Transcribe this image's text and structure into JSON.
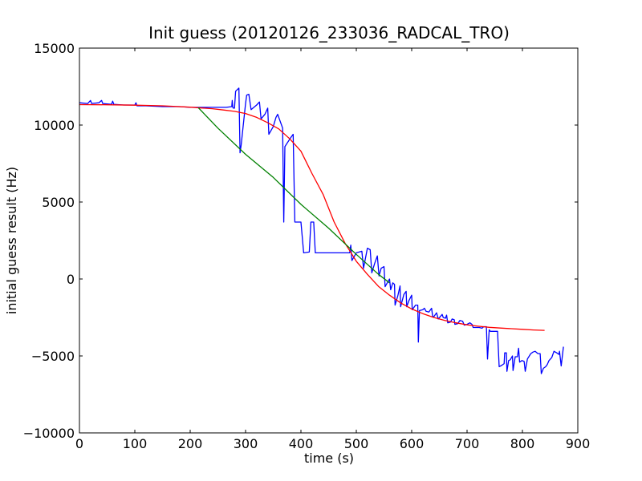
{
  "chart_data": {
    "type": "line",
    "title": "Init guess (20120126_233036_RADCAL_TRO)",
    "xlabel": "time (s)",
    "ylabel": "initial guess result (Hz)",
    "xlim": [
      0,
      900
    ],
    "ylim": [
      -10000,
      15000
    ],
    "xticks": [
      0,
      100,
      200,
      300,
      400,
      500,
      600,
      700,
      800,
      900
    ],
    "yticks": [
      -10000,
      -5000,
      0,
      5000,
      10000,
      15000
    ],
    "grid": false,
    "legend": "none",
    "series": [
      {
        "color": "#0000ff",
        "points": [
          [
            0,
            11450
          ],
          [
            15,
            11400
          ],
          [
            20,
            11600
          ],
          [
            22,
            11400
          ],
          [
            35,
            11450
          ],
          [
            40,
            11600
          ],
          [
            42,
            11400
          ],
          [
            58,
            11350
          ],
          [
            60,
            11550
          ],
          [
            62,
            11350
          ],
          [
            80,
            11300
          ],
          [
            100,
            11300
          ],
          [
            102,
            11450
          ],
          [
            104,
            11250
          ],
          [
            120,
            11250
          ],
          [
            150,
            11200
          ],
          [
            180,
            11200
          ],
          [
            200,
            11150
          ],
          [
            220,
            11150
          ],
          [
            250,
            11150
          ],
          [
            265,
            11150
          ],
          [
            275,
            11200
          ],
          [
            276,
            11600
          ],
          [
            277,
            11150
          ],
          [
            278,
            11100
          ],
          [
            280,
            11100
          ],
          [
            282,
            12200
          ],
          [
            288,
            12400
          ],
          [
            290,
            8200
          ],
          [
            292,
            8700
          ],
          [
            300,
            11400
          ],
          [
            302,
            11950
          ],
          [
            306,
            12000
          ],
          [
            310,
            11000
          ],
          [
            320,
            11300
          ],
          [
            325,
            11500
          ],
          [
            328,
            10400
          ],
          [
            335,
            10700
          ],
          [
            340,
            11100
          ],
          [
            342,
            9400
          ],
          [
            350,
            9900
          ],
          [
            355,
            10500
          ],
          [
            358,
            10700
          ],
          [
            367,
            9800
          ],
          [
            369,
            3700
          ],
          [
            371,
            8600
          ],
          [
            380,
            9100
          ],
          [
            386,
            9400
          ],
          [
            389,
            3700
          ],
          [
            392,
            3700
          ],
          [
            400,
            3700
          ],
          [
            405,
            1700
          ],
          [
            415,
            1750
          ],
          [
            418,
            3700
          ],
          [
            423,
            3700
          ],
          [
            426,
            1700
          ],
          [
            440,
            1700
          ],
          [
            460,
            1700
          ],
          [
            475,
            1700
          ],
          [
            488,
            1700
          ],
          [
            490,
            2200
          ],
          [
            492,
            1200
          ],
          [
            500,
            1700
          ],
          [
            510,
            1800
          ],
          [
            513,
            700
          ],
          [
            520,
            2000
          ],
          [
            525,
            1900
          ],
          [
            528,
            400
          ],
          [
            533,
            1000
          ],
          [
            538,
            1500
          ],
          [
            541,
            200
          ],
          [
            545,
            700
          ],
          [
            550,
            800
          ],
          [
            552,
            -500
          ],
          [
            555,
            -300
          ],
          [
            560,
            0
          ],
          [
            562,
            -700
          ],
          [
            566,
            -250
          ],
          [
            569,
            -350
          ],
          [
            570,
            -1700
          ],
          [
            575,
            -1100
          ],
          [
            579,
            -450
          ],
          [
            580,
            -1800
          ],
          [
            586,
            -1000
          ],
          [
            590,
            -800
          ],
          [
            591,
            -1800
          ],
          [
            595,
            -1400
          ],
          [
            600,
            -1050
          ],
          [
            601,
            -2000
          ],
          [
            607,
            -1700
          ],
          [
            611,
            -1700
          ],
          [
            612,
            -4100
          ],
          [
            614,
            -2050
          ],
          [
            620,
            -2000
          ],
          [
            623,
            -1900
          ],
          [
            626,
            -2100
          ],
          [
            631,
            -2150
          ],
          [
            636,
            -1900
          ],
          [
            638,
            -2450
          ],
          [
            640,
            -2450
          ],
          [
            645,
            -2200
          ],
          [
            648,
            -2600
          ],
          [
            655,
            -2300
          ],
          [
            657,
            -2500
          ],
          [
            661,
            -2550
          ],
          [
            663,
            -2350
          ],
          [
            665,
            -2850
          ],
          [
            670,
            -2800
          ],
          [
            673,
            -2600
          ],
          [
            677,
            -2650
          ],
          [
            678,
            -2950
          ],
          [
            683,
            -2900
          ],
          [
            687,
            -2700
          ],
          [
            692,
            -2750
          ],
          [
            695,
            -3000
          ],
          [
            700,
            -2950
          ],
          [
            705,
            -2850
          ],
          [
            709,
            -2950
          ],
          [
            711,
            -3150
          ],
          [
            722,
            -3150
          ],
          [
            727,
            -3200
          ],
          [
            730,
            -3100
          ],
          [
            735,
            -3100
          ],
          [
            737,
            -5200
          ],
          [
            740,
            -3300
          ],
          [
            742,
            -3400
          ],
          [
            755,
            -3400
          ],
          [
            758,
            -5700
          ],
          [
            763,
            -5600
          ],
          [
            767,
            -5500
          ],
          [
            768,
            -4800
          ],
          [
            771,
            -4800
          ],
          [
            772,
            -6000
          ],
          [
            775,
            -5300
          ],
          [
            778,
            -5250
          ],
          [
            782,
            -5000
          ],
          [
            783,
            -5950
          ],
          [
            787,
            -5050
          ],
          [
            791,
            -5050
          ],
          [
            793,
            -4500
          ],
          [
            795,
            -5400
          ],
          [
            799,
            -5300
          ],
          [
            803,
            -5350
          ],
          [
            805,
            -6000
          ],
          [
            809,
            -5200
          ],
          [
            815,
            -4850
          ],
          [
            819,
            -4750
          ],
          [
            823,
            -4700
          ],
          [
            828,
            -4850
          ],
          [
            832,
            -4850
          ],
          [
            834,
            -6150
          ],
          [
            838,
            -5800
          ],
          [
            842,
            -5700
          ],
          [
            845,
            -5550
          ],
          [
            848,
            -5300
          ],
          [
            853,
            -5100
          ],
          [
            857,
            -4700
          ],
          [
            862,
            -4800
          ],
          [
            866,
            -4900
          ],
          [
            867,
            -4700
          ],
          [
            870,
            -5650
          ],
          [
            874,
            -4400
          ]
        ]
      },
      {
        "color": "#ff0000",
        "points": [
          [
            0,
            11330
          ],
          [
            50,
            11320
          ],
          [
            100,
            11290
          ],
          [
            150,
            11250
          ],
          [
            200,
            11160
          ],
          [
            220,
            11110
          ],
          [
            240,
            11060
          ],
          [
            260,
            10980
          ],
          [
            280,
            10890
          ],
          [
            300,
            10750
          ],
          [
            320,
            10500
          ],
          [
            340,
            10150
          ],
          [
            360,
            9750
          ],
          [
            380,
            9100
          ],
          [
            400,
            8300
          ],
          [
            420,
            6850
          ],
          [
            440,
            5500
          ],
          [
            460,
            3700
          ],
          [
            480,
            2300
          ],
          [
            500,
            1150
          ],
          [
            520,
            300
          ],
          [
            540,
            -480
          ],
          [
            560,
            -1050
          ],
          [
            580,
            -1550
          ],
          [
            600,
            -1950
          ],
          [
            620,
            -2250
          ],
          [
            640,
            -2500
          ],
          [
            660,
            -2700
          ],
          [
            680,
            -2850
          ],
          [
            700,
            -2980
          ],
          [
            720,
            -3070
          ],
          [
            740,
            -3140
          ],
          [
            760,
            -3190
          ],
          [
            780,
            -3230
          ],
          [
            800,
            -3270
          ],
          [
            820,
            -3310
          ],
          [
            840,
            -3340
          ]
        ]
      },
      {
        "color": "#008000",
        "points": [
          [
            215,
            11120
          ],
          [
            250,
            9800
          ],
          [
            300,
            8100
          ],
          [
            350,
            6600
          ],
          [
            400,
            4850
          ],
          [
            450,
            3300
          ],
          [
            500,
            1600
          ],
          [
            540,
            300
          ],
          [
            560,
            -250
          ]
        ]
      }
    ]
  }
}
